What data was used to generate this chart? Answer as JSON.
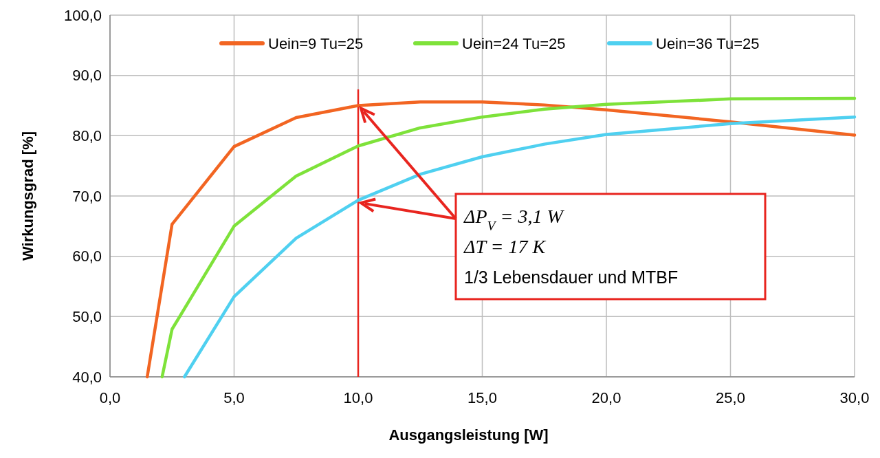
{
  "chart_data": {
    "type": "line",
    "xlabel": "Ausgangsleistung [W]",
    "ylabel": "Wirkungsgrad [%]",
    "xlim": [
      0,
      30
    ],
    "ylim": [
      40,
      100
    ],
    "xticks": [
      {
        "value": 0,
        "label": "0,0"
      },
      {
        "value": 5,
        "label": "5,0"
      },
      {
        "value": 10,
        "label": "10,0"
      },
      {
        "value": 15,
        "label": "15,0"
      },
      {
        "value": 20,
        "label": "20,0"
      },
      {
        "value": 25,
        "label": "25,0"
      },
      {
        "value": 30,
        "label": "30,0"
      }
    ],
    "yticks": [
      {
        "value": 40,
        "label": "40,0"
      },
      {
        "value": 50,
        "label": "50,0"
      },
      {
        "value": 60,
        "label": "60,0"
      },
      {
        "value": 70,
        "label": "70,0"
      },
      {
        "value": 80,
        "label": "80,0"
      },
      {
        "value": 90,
        "label": "90,0"
      },
      {
        "value": 100,
        "label": "100,0"
      }
    ],
    "grid": true,
    "legend": "top",
    "marker": "none",
    "line_style": "solid",
    "series": [
      {
        "name": "Uein=9 Tu=25",
        "color": "#f26522",
        "x": [
          1.5,
          2.5,
          5,
          7.5,
          10,
          12.5,
          15,
          17.5,
          20,
          25,
          30
        ],
        "values": [
          40,
          65.3,
          78.2,
          83,
          85,
          85.6,
          85.6,
          85.1,
          84.3,
          82.3,
          80.1
        ]
      },
      {
        "name": "Uein=24 Tu=25",
        "color": "#7ee23a",
        "x": [
          2.1,
          2.5,
          5,
          7.5,
          10,
          12.5,
          15,
          17.5,
          20,
          25,
          30
        ],
        "values": [
          40,
          47.9,
          65,
          73.3,
          78.3,
          81.3,
          83.1,
          84.4,
          85.2,
          86.1,
          86.2
        ]
      },
      {
        "name": "Uein=36 Tu=25",
        "color": "#4fd0f0",
        "x": [
          3,
          5,
          7.5,
          10,
          12.5,
          15,
          17.5,
          20,
          25,
          30
        ],
        "values": [
          40,
          53.3,
          63,
          69.3,
          73.6,
          76.5,
          78.6,
          80.2,
          82,
          83.1
        ]
      }
    ],
    "ref_lines": [
      {
        "axis": "x",
        "value": 10,
        "color": "#e8251f"
      }
    ],
    "annotations": [
      "ΔP$_{V}$ = 3,1 W",
      "ΔT = 17 K",
      "1/3 Lebensdauer und MTBF"
    ]
  }
}
